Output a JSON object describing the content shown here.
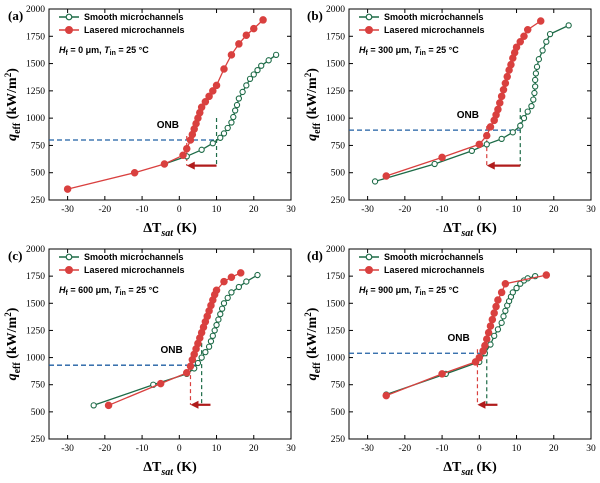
{
  "figure": {
    "series_names": [
      "Smooth microchannels",
      "Lasered microchannels"
    ],
    "colors": {
      "smooth": "#1d6b47",
      "lasered": "#d9403f",
      "onb_line": "#1f5fa3",
      "arrow": "#b01c1c"
    },
    "x_ticks": [
      "-30",
      "-20",
      "-10",
      "0",
      "10",
      "20",
      "30"
    ],
    "y_ticks": [
      "250",
      "500",
      "750",
      "1000",
      "1250",
      "1500",
      "1750",
      "2000"
    ],
    "xlabel_main": "ΔT",
    "xlabel_sub": "sat",
    "xlabel_unit": " (K)",
    "ylabel_main": "q",
    "ylabel_sub": "eff",
    "ylabel_unit": " (kW/m",
    "ylabel_sup": "2",
    "ylabel_end": ")",
    "onb_label": "ONB"
  },
  "chart_data": [
    {
      "type": "line",
      "panel": "(a)",
      "condition": {
        "hf_label": "H",
        "hf_sub": "f",
        "hf_value": " = 0 μm, ",
        "tin_label": "T",
        "tin_sub": "in",
        "tin_value": " = 25 °C"
      },
      "xlim": [
        -35,
        30
      ],
      "ylim": [
        250,
        2000
      ],
      "series": [
        {
          "name": "Smooth microchannels",
          "marker": "open-circle",
          "x": [
            -4,
            2,
            6,
            9,
            11,
            12,
            13,
            14,
            14.5,
            15,
            15.5,
            16,
            17,
            18,
            19,
            20,
            21,
            22,
            24,
            26
          ],
          "y": [
            580,
            650,
            710,
            770,
            820,
            860,
            910,
            960,
            1010,
            1070,
            1120,
            1180,
            1240,
            1300,
            1360,
            1400,
            1440,
            1480,
            1530,
            1580
          ]
        },
        {
          "name": "Lasered microchannels",
          "marker": "filled-circle",
          "x": [
            -30,
            -12,
            -4,
            1,
            2,
            3,
            3.5,
            4,
            4.5,
            5,
            5.5,
            6,
            7,
            8,
            9,
            10,
            12,
            14,
            16,
            18,
            20,
            22.5
          ],
          "y": [
            350,
            500,
            580,
            660,
            720,
            800,
            850,
            900,
            950,
            1000,
            1050,
            1100,
            1150,
            1200,
            1250,
            1300,
            1450,
            1580,
            1680,
            1760,
            1820,
            1900
          ]
        }
      ],
      "onb": {
        "y": 800,
        "x_lasered": 2,
        "x_smooth": 10
      }
    },
    {
      "type": "line",
      "panel": "(b)",
      "condition": {
        "hf_label": "H",
        "hf_sub": "f",
        "hf_value": " = 300 μm, ",
        "tin_label": "T",
        "tin_sub": "in",
        "tin_value": " = 25 °C"
      },
      "xlim": [
        -35,
        30
      ],
      "ylim": [
        250,
        2000
      ],
      "series": [
        {
          "name": "Smooth microchannels",
          "marker": "open-circle",
          "x": [
            -28,
            -12,
            -2,
            2,
            6,
            9,
            11,
            12,
            13,
            14,
            14.5,
            14.8,
            15,
            15,
            15.2,
            15.5,
            16,
            17,
            18,
            19,
            24
          ],
          "y": [
            420,
            580,
            700,
            760,
            810,
            870,
            930,
            1000,
            1060,
            1110,
            1170,
            1230,
            1290,
            1350,
            1410,
            1470,
            1540,
            1620,
            1700,
            1770,
            1850
          ]
        },
        {
          "name": "Lasered microchannels",
          "marker": "filled-circle",
          "x": [
            -25,
            -10,
            0,
            2,
            3,
            4,
            4.5,
            5,
            5.5,
            6,
            6.5,
            7,
            7.5,
            8,
            8.5,
            9,
            9.5,
            10,
            11,
            12,
            13,
            16.5
          ],
          "y": [
            470,
            640,
            760,
            840,
            920,
            980,
            1030,
            1080,
            1140,
            1200,
            1260,
            1320,
            1380,
            1440,
            1490,
            1550,
            1600,
            1650,
            1700,
            1750,
            1810,
            1890
          ]
        }
      ],
      "onb": {
        "y": 890,
        "x_lasered": 2,
        "x_smooth": 11
      }
    },
    {
      "type": "line",
      "panel": "(c)",
      "condition": {
        "hf_label": "H",
        "hf_sub": "f",
        "hf_value": " = 600 μm, ",
        "tin_label": "T",
        "tin_sub": "in",
        "tin_value": " = 25 °C"
      },
      "xlim": [
        -35,
        30
      ],
      "ylim": [
        250,
        2000
      ],
      "series": [
        {
          "name": "Smooth microchannels",
          "marker": "open-circle",
          "x": [
            -23,
            -7,
            2,
            4,
            5,
            6,
            7,
            8,
            8.5,
            9,
            9.5,
            10,
            10.5,
            11,
            11.5,
            12,
            13,
            14,
            16,
            18,
            21
          ],
          "y": [
            560,
            750,
            850,
            900,
            950,
            1000,
            1050,
            1100,
            1150,
            1200,
            1250,
            1300,
            1350,
            1400,
            1450,
            1500,
            1550,
            1600,
            1650,
            1700,
            1760
          ]
        },
        {
          "name": "Lasered microchannels",
          "marker": "filled-circle",
          "x": [
            -19,
            -5,
            2,
            3,
            3.5,
            4,
            4.5,
            5,
            5.5,
            6,
            6.5,
            7,
            7.5,
            8,
            8.5,
            9,
            9.5,
            10,
            12,
            14,
            16.5
          ],
          "y": [
            560,
            760,
            860,
            920,
            980,
            1030,
            1080,
            1130,
            1180,
            1230,
            1280,
            1330,
            1380,
            1430,
            1480,
            1530,
            1580,
            1620,
            1700,
            1740,
            1780
          ]
        }
      ],
      "onb": {
        "y": 930,
        "x_lasered": 3,
        "x_smooth": 6
      }
    },
    {
      "type": "line",
      "panel": "(d)",
      "condition": {
        "hf_label": "H",
        "hf_sub": "f",
        "hf_value": " = 900 μm, ",
        "tin_label": "T",
        "tin_sub": "in",
        "tin_value": " = 25 °C"
      },
      "xlim": [
        -35,
        30
      ],
      "ylim": [
        250,
        2000
      ],
      "series": [
        {
          "name": "Smooth microchannels",
          "marker": "open-circle",
          "x": [
            -25,
            -9,
            0,
            1.5,
            3,
            4,
            5,
            6,
            6.5,
            7,
            7.5,
            8,
            8.5,
            9,
            10,
            11,
            12,
            13,
            15
          ],
          "y": [
            660,
            850,
            960,
            1040,
            1120,
            1200,
            1260,
            1320,
            1380,
            1430,
            1480,
            1520,
            1560,
            1600,
            1640,
            1680,
            1710,
            1730,
            1750
          ]
        },
        {
          "name": "Lasered microchannels",
          "marker": "filled-circle",
          "x": [
            -25,
            -10,
            -1,
            0,
            1,
            1.5,
            2,
            2.5,
            3,
            3.5,
            4,
            4.5,
            5,
            6,
            7,
            18
          ],
          "y": [
            650,
            850,
            960,
            1000,
            1060,
            1110,
            1170,
            1230,
            1290,
            1350,
            1410,
            1470,
            1530,
            1600,
            1680,
            1760
          ]
        }
      ],
      "onb": {
        "y": 1040,
        "x_lasered": -0.5,
        "x_smooth": 2
      }
    }
  ]
}
